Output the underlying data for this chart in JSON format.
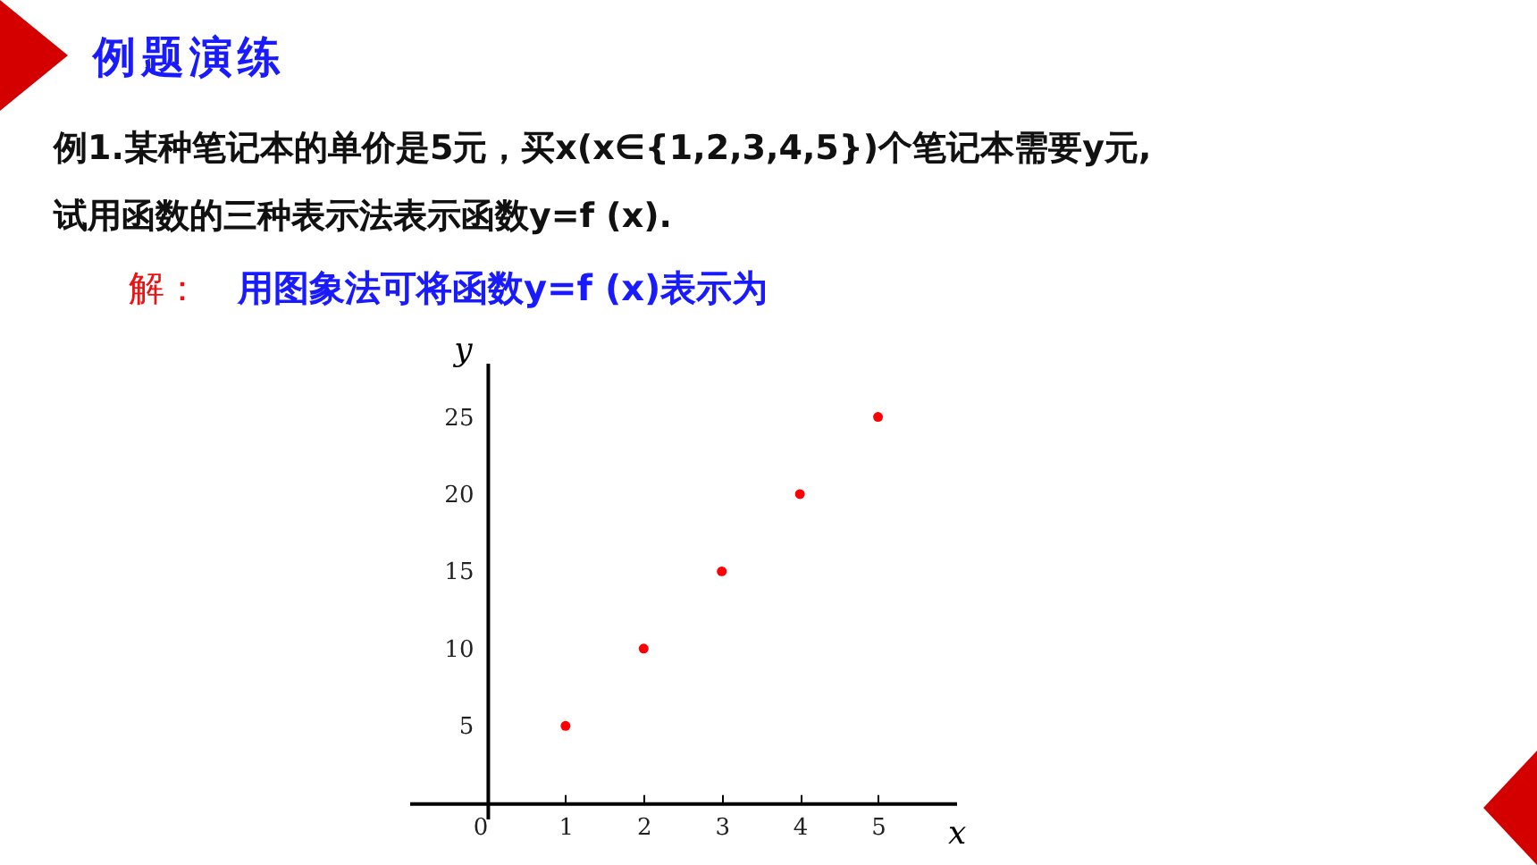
{
  "chart_data": {
    "type": "scatter",
    "title": "例题演练",
    "subtitle": "例1.某种笔记本的单价是5元，买x(x∈{1,2,3,4,5})个笔记本需要y元,\n试用函数的三种表示法表示函数y=f (x).",
    "annotations": [
      "解：",
      "用图象法可将函数y=f (x)表示为"
    ],
    "xlabel": "x",
    "ylabel": "y",
    "x": [
      1,
      2,
      3,
      4,
      5
    ],
    "series": [
      {
        "color": "#ff0000",
        "values": [
          5,
          10,
          15,
          20,
          25
        ]
      }
    ],
    "xlim": [
      -1,
      6
    ],
    "ylim": [
      -1,
      28.5
    ],
    "xticks": [
      0,
      1,
      2,
      3,
      4,
      5
    ],
    "yticks": [
      5,
      10,
      15,
      20,
      25
    ],
    "grid": false,
    "marker": "circle"
  }
}
